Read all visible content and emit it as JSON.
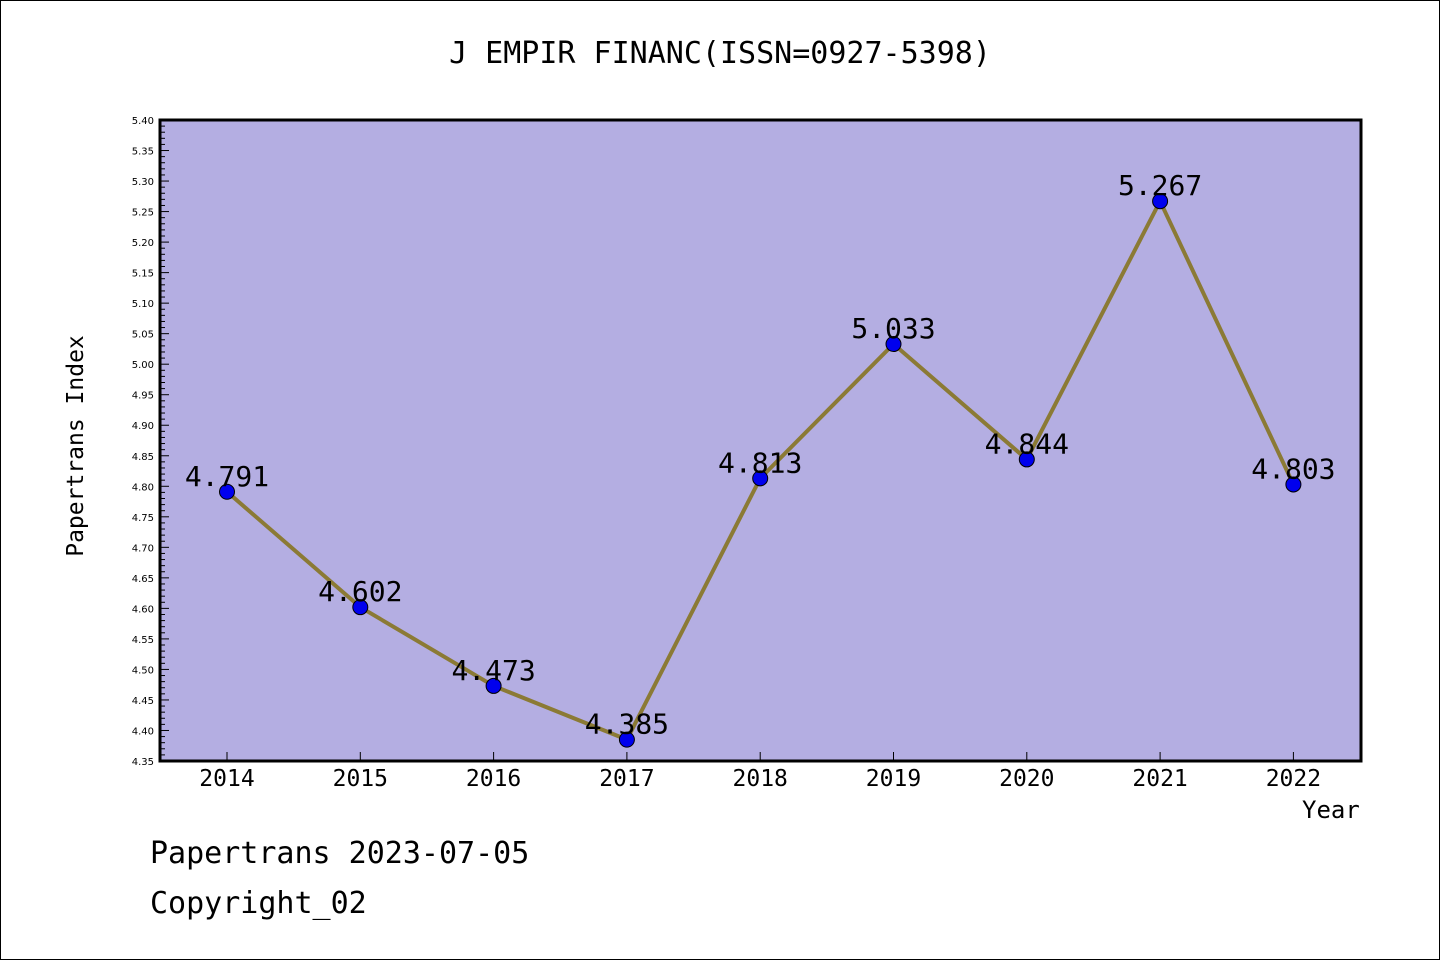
{
  "title": "J EMPIR FINANC(ISSN=0927-5398)",
  "footer": {
    "line1": "Papertrans 2023-07-05",
    "line2": "Copyright_02"
  },
  "colors": {
    "plot_background": "#b4aee2",
    "line": "#8b7a35",
    "marker": "#0000ee"
  },
  "chart_data": {
    "type": "line",
    "xlabel": "Year",
    "ylabel": "Papertrans Index",
    "ylim": [
      4.35,
      5.4
    ],
    "y_tick_step": 0.05,
    "grid": false,
    "categories": [
      "2014",
      "2015",
      "2016",
      "2017",
      "2018",
      "2019",
      "2020",
      "2021",
      "2022"
    ],
    "values": [
      4.791,
      4.602,
      4.473,
      4.385,
      4.813,
      5.033,
      4.844,
      5.267,
      4.803
    ],
    "value_labels": [
      "4.791",
      "4.602",
      "4.473",
      "4.385",
      "4.813",
      "5.033",
      "4.844",
      "5.267",
      "4.803"
    ],
    "y_tick_labels": [
      "4.35",
      "4.40",
      "4.45",
      "4.50",
      "4.55",
      "4.60",
      "4.65",
      "4.70",
      "4.75",
      "4.80",
      "4.85",
      "4.90",
      "4.95",
      "5.00",
      "5.05",
      "5.10",
      "5.15",
      "5.20",
      "5.25",
      "5.30",
      "5.35",
      "5.40"
    ]
  }
}
